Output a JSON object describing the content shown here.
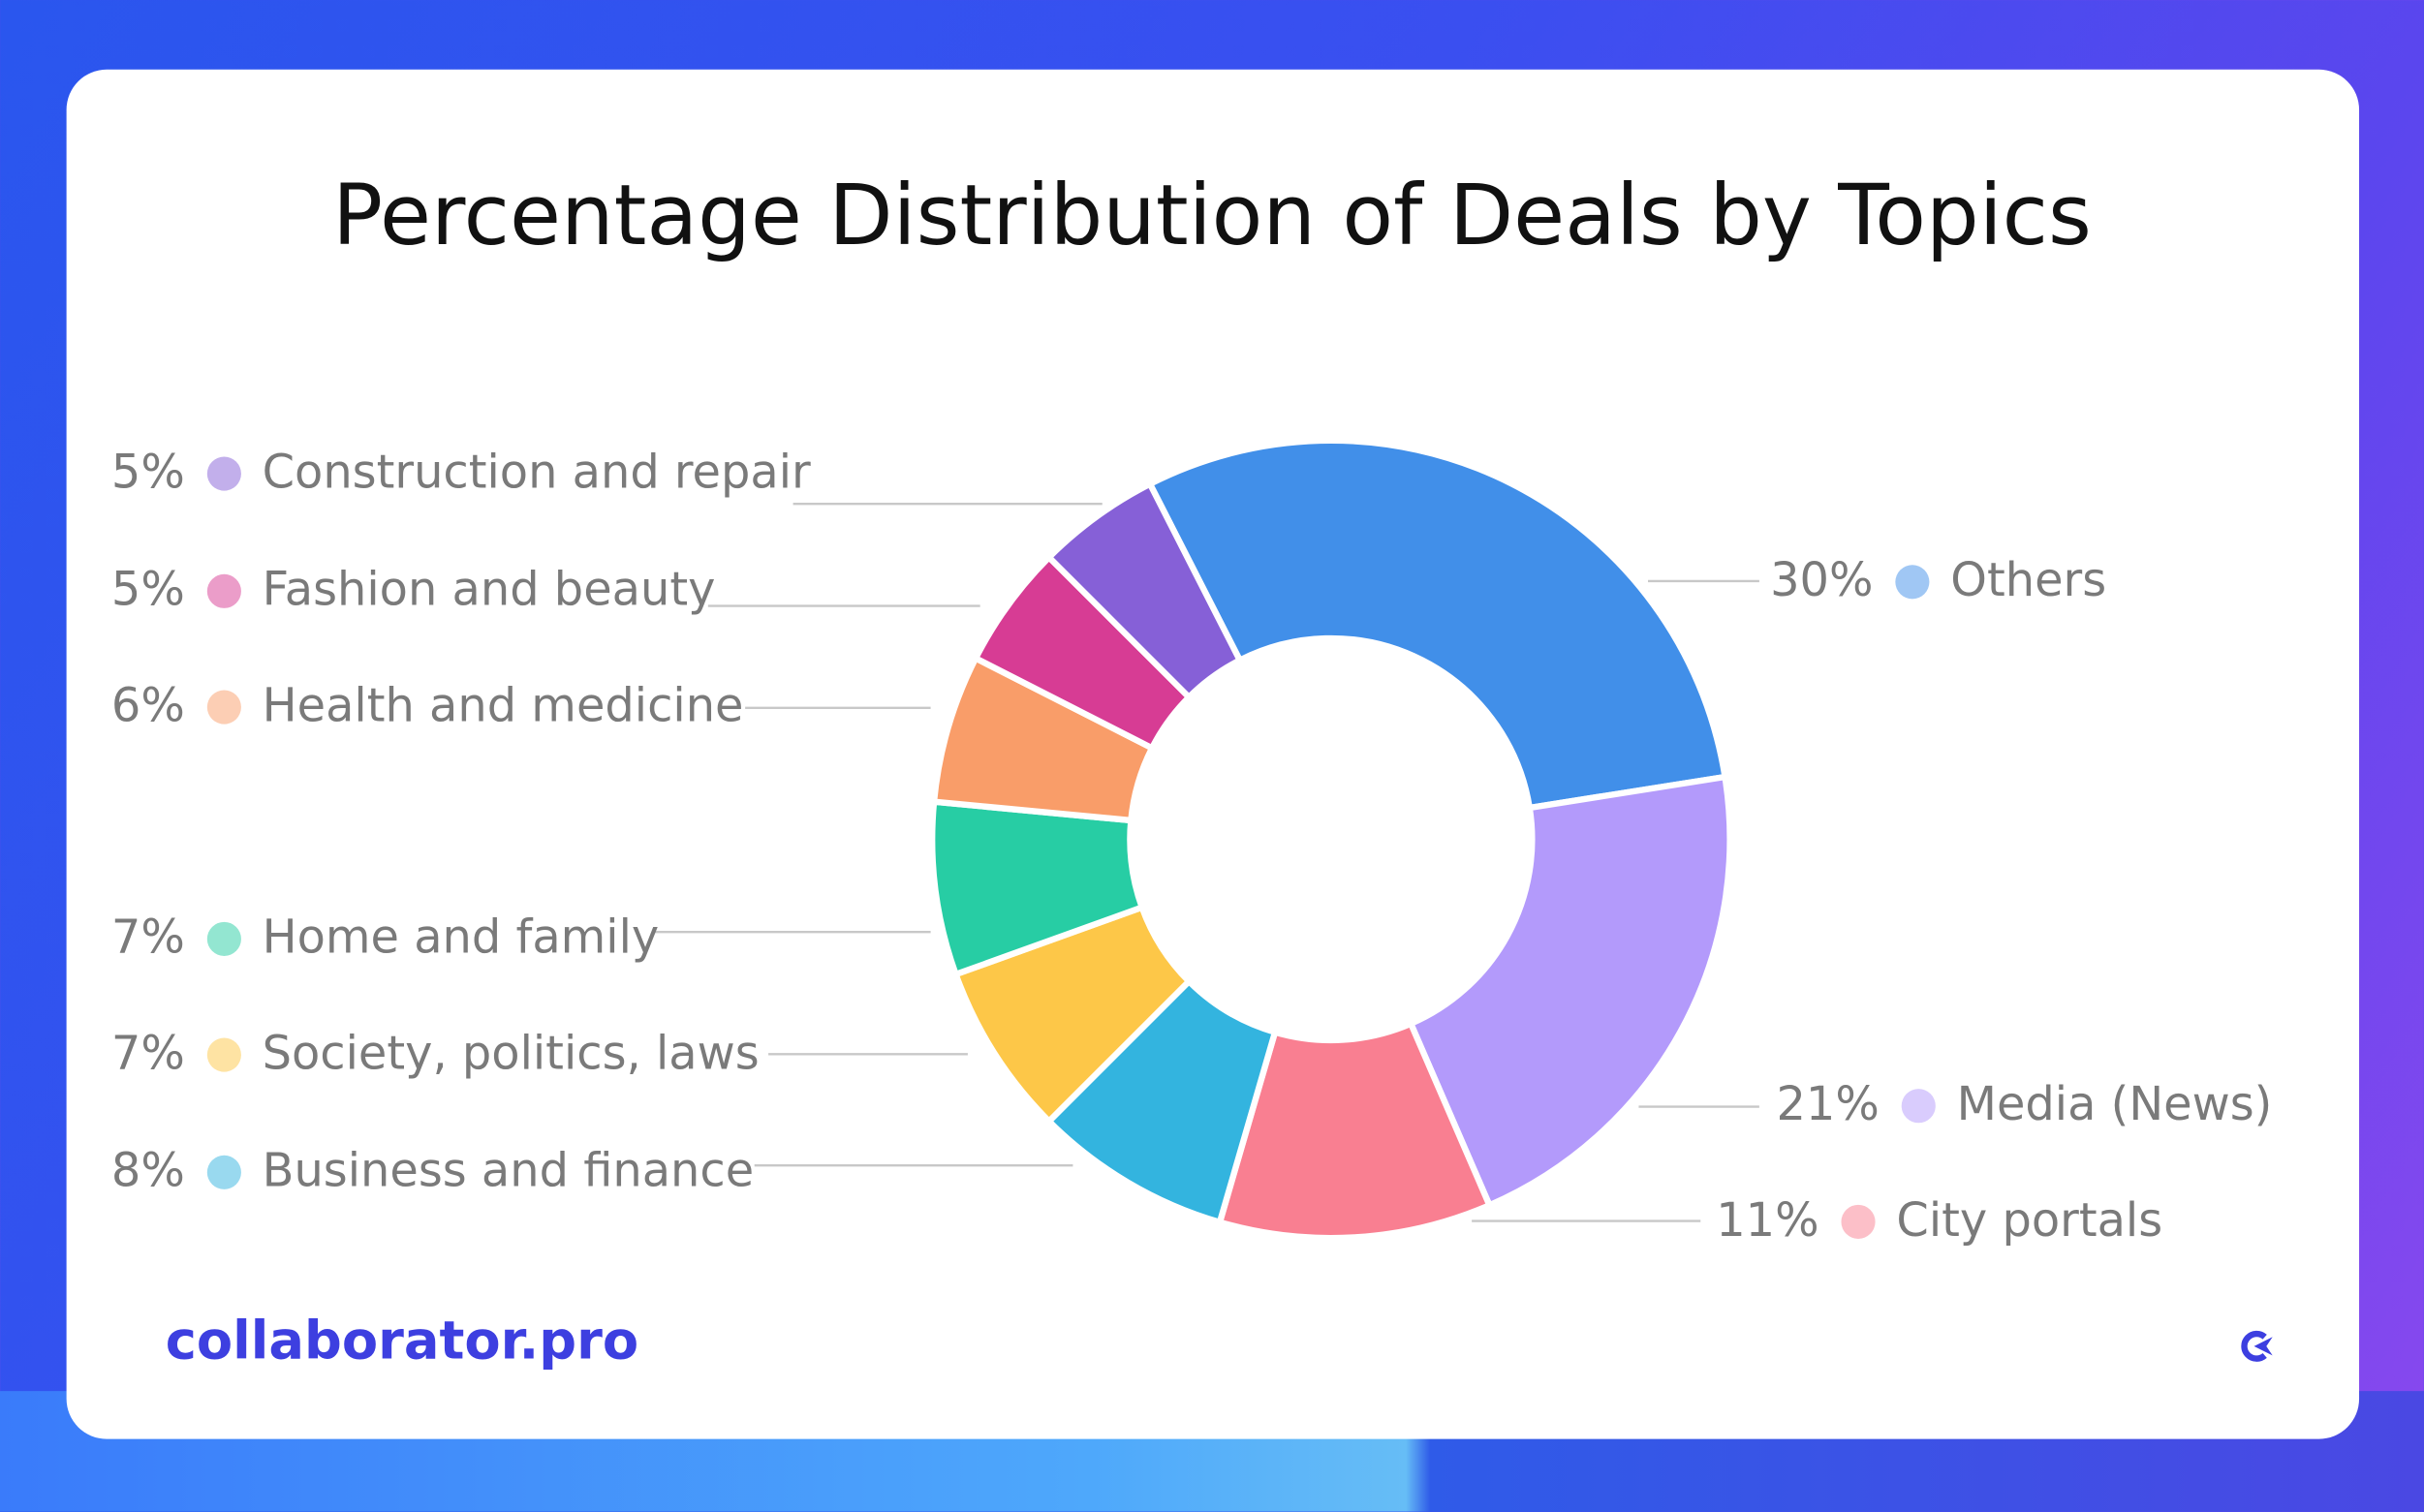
{
  "chart_data": {
    "type": "pie",
    "donut": true,
    "title": "Percentage Distribution of Deals by Topics",
    "slices": [
      {
        "label": "Others",
        "value": 30,
        "display": "30%",
        "color": "#418fe9"
      },
      {
        "label": "Media (News)",
        "value": 21,
        "display": "21%",
        "color": "#b39afb"
      },
      {
        "label": "City portals",
        "value": 11,
        "display": "11%",
        "color": "#f97f91"
      },
      {
        "label": "Business and finance",
        "value": 8,
        "display": "8%",
        "color": "#33b4df"
      },
      {
        "label": "Society, politics, laws",
        "value": 7,
        "display": "7%",
        "color": "#fdc748"
      },
      {
        "label": "Home and family",
        "value": 7,
        "display": "7%",
        "color": "#27cda4"
      },
      {
        "label": "Health and medicine",
        "value": 6,
        "display": "6%",
        "color": "#f99d69"
      },
      {
        "label": "Fashion and beauty",
        "value": 5,
        "display": "5%",
        "color": "#d73c94"
      },
      {
        "label": "Construction and repair",
        "value": 5,
        "display": "5%",
        "color": "#8660d7"
      }
    ]
  },
  "brand": {
    "name": "collaborator.pro",
    "color": "#3d3fe0",
    "icon": "collaborator-logo-icon"
  }
}
